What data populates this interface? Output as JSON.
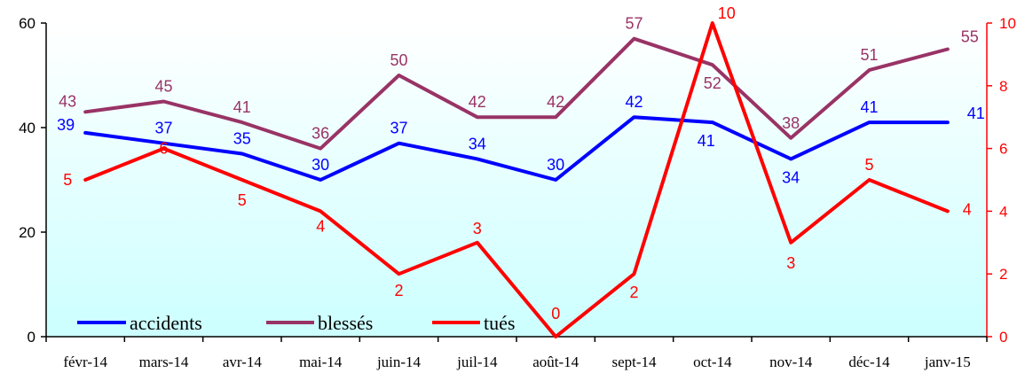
{
  "chart_data": {
    "type": "line",
    "categories": [
      "févr-14",
      "mars-14",
      "avr-14",
      "mai-14",
      "juin-14",
      "juil-14",
      "août-14",
      "sept-14",
      "oct-14",
      "nov-14",
      "déc-14",
      "janv-15"
    ],
    "y_left": {
      "ylim": [
        0,
        60
      ],
      "ticks": [
        "0",
        "20",
        "40",
        "60"
      ]
    },
    "y_right": {
      "ylim": [
        0,
        10
      ],
      "ticks": [
        "0",
        "2",
        "4",
        "6",
        "8",
        "10"
      ]
    },
    "series": [
      {
        "name": "accidents",
        "axis": "left",
        "color": "#0000FF",
        "values": [
          39,
          37,
          35,
          30,
          37,
          34,
          30,
          42,
          41,
          34,
          41,
          41
        ]
      },
      {
        "name": "blessés",
        "axis": "left",
        "color": "#993366",
        "values": [
          43,
          45,
          41,
          36,
          50,
          42,
          42,
          57,
          52,
          38,
          51,
          55
        ]
      },
      {
        "name": "tués",
        "axis": "right",
        "color": "#FF0000",
        "values": [
          5,
          6,
          5,
          4,
          2,
          3,
          0,
          2,
          10,
          3,
          5,
          4
        ]
      }
    ],
    "background_gradient": [
      "#ffffff",
      "#ccffff"
    ],
    "axis_colors": {
      "left": "#000000",
      "right": "#FF0000"
    },
    "legend_placement": "bottom-left",
    "grid": false
  }
}
